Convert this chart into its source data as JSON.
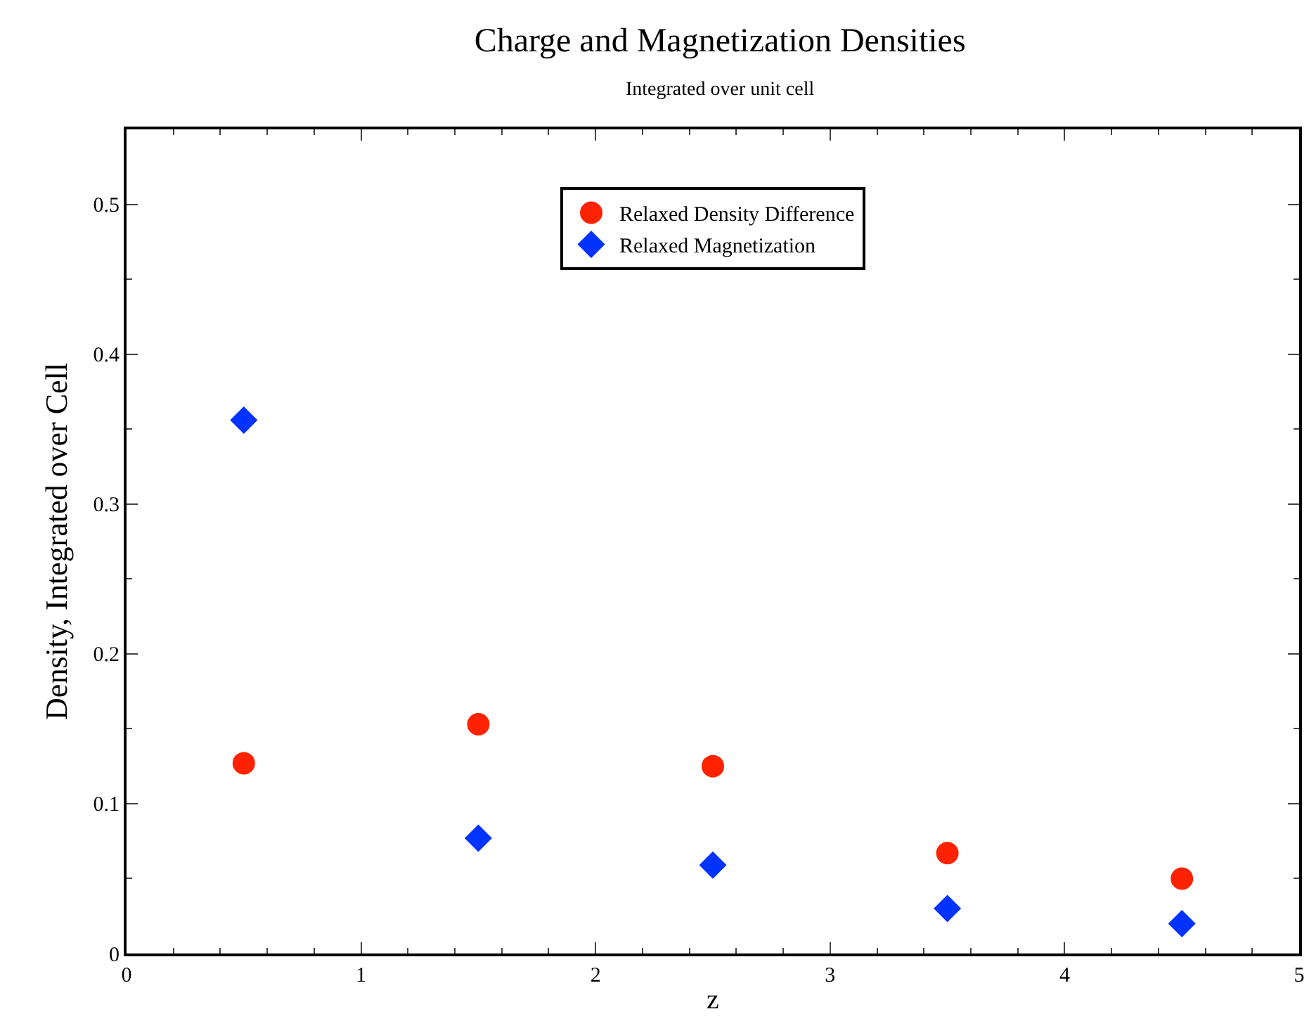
{
  "chart_data": {
    "type": "scatter",
    "title": "Charge and Magnetization Densities",
    "subtitle": "Integrated over unit cell",
    "xlabel": "z",
    "ylabel": "Density, Integrated over Cell",
    "x": [
      0.5,
      1.5,
      2.5,
      3.5,
      4.5
    ],
    "series": [
      {
        "name": "Relaxed Density Difference",
        "color": "#ff2200",
        "marker": "circle",
        "values": [
          0.127,
          0.153,
          0.125,
          0.067,
          0.05
        ]
      },
      {
        "name": "Relaxed Magnetization",
        "color": "#0033ff",
        "marker": "diamond",
        "values": [
          0.356,
          0.077,
          0.059,
          0.03,
          0.02
        ]
      }
    ],
    "xlim": [
      0,
      5
    ],
    "xticks": [
      0,
      1,
      2,
      3,
      4,
      5
    ],
    "ylim": [
      0,
      0.55
    ],
    "yticks": [
      0,
      0.1,
      0.2,
      0.3,
      0.4,
      0.5
    ],
    "legend": "top"
  }
}
